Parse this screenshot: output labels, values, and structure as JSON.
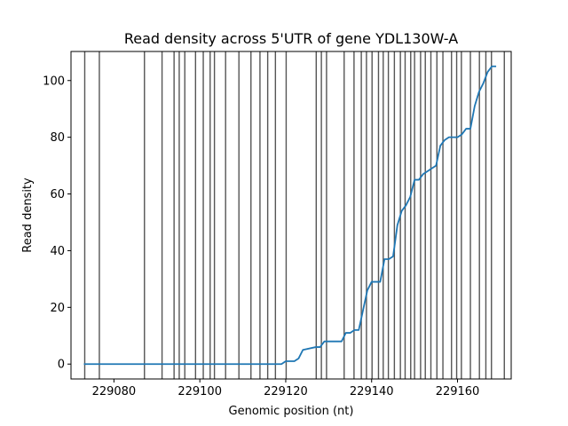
{
  "chart_data": {
    "type": "line",
    "title": "Read density across 5'UTR of gene YDL130W-A",
    "xlabel": "Genomic position (nt)",
    "ylabel": "Read density",
    "xlim": [
      229070,
      229172.5
    ],
    "ylim": [
      -5.25,
      110.25
    ],
    "xticks": [
      229080,
      229100,
      229120,
      229140,
      229160
    ],
    "xtick_labels": [
      "229080",
      "229100",
      "229120",
      "229140",
      "229160"
    ],
    "yticks": [
      0,
      20,
      40,
      60,
      80,
      100
    ],
    "ytick_labels": [
      "0",
      "20",
      "40",
      "60",
      "80",
      "100"
    ],
    "grid": false,
    "line_color": "#1f77b4",
    "vline_color": "#555555",
    "vlines": [
      229073.2,
      229076.6,
      229087.1,
      229091.2,
      229094.0,
      229095.2,
      229096.5,
      229099.0,
      229100.8,
      229102.4,
      229103.4,
      229106.0,
      229109.1,
      229111.9,
      229114.0,
      229115.8,
      229117.6,
      229120.1,
      229127.1,
      229128.3,
      229129.5,
      229133.6,
      229135.9,
      229137.6,
      229138.8,
      229140.1,
      229141.6,
      229142.7,
      229143.9,
      229145.3,
      229146.7,
      229147.8,
      229149.1,
      229150.0,
      229151.4,
      229152.5,
      229153.8,
      229155.2,
      229156.6,
      229158.6,
      229159.8,
      229160.9,
      229163.0,
      229165.1,
      229166.6,
      229167.9,
      229170.9
    ],
    "series": [
      {
        "x": [
          229073,
          229119,
          229120,
          229122,
          229123,
          229124,
          229127,
          229128,
          229129,
          229133,
          229134,
          229135,
          229136,
          229137,
          229138,
          229139,
          229140,
          229142,
          229143,
          229144,
          229145,
          229146,
          229147,
          229148,
          229149,
          229150,
          229151,
          229152,
          229153,
          229154,
          229155,
          229156,
          229157,
          229158,
          229159,
          229160,
          229161,
          229162,
          229163,
          229164,
          229165,
          229166,
          229167,
          229168,
          229169
        ],
        "y": [
          0,
          0,
          1,
          1,
          2,
          5,
          6,
          6,
          8,
          8,
          11,
          11,
          12,
          12,
          19,
          26,
          29,
          29,
          37,
          37,
          38,
          49,
          54,
          56,
          59,
          65,
          65,
          67,
          68,
          69,
          70,
          77,
          79,
          80,
          80,
          80,
          81,
          83,
          83,
          91,
          96,
          99,
          103,
          105,
          105
        ]
      }
    ]
  }
}
